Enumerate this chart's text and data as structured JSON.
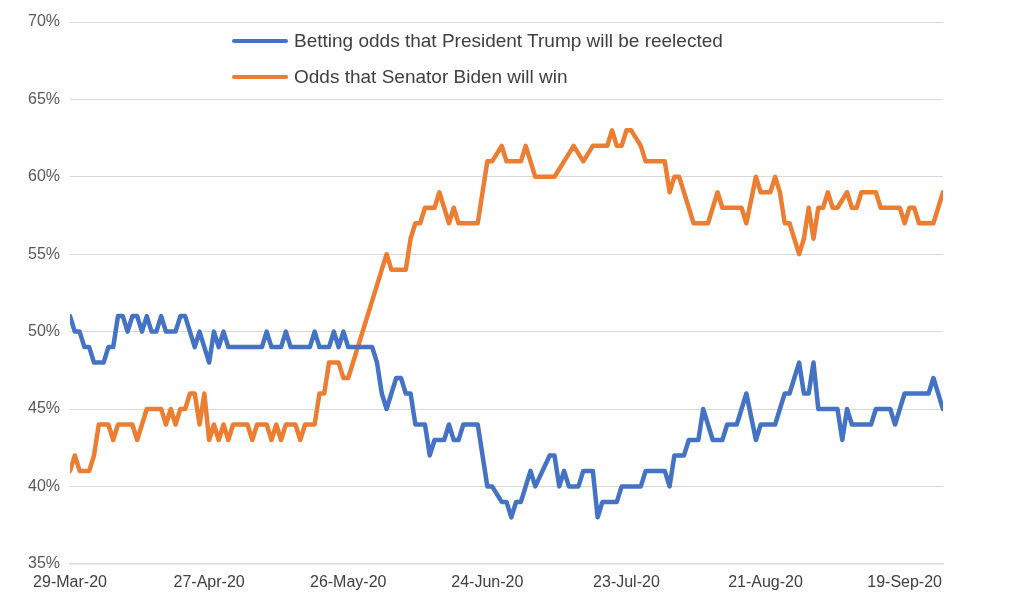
{
  "chart_data": {
    "type": "line",
    "legend": "top",
    "grid": "y",
    "marker": "none",
    "line_style": "solid",
    "xlim": [
      "2020-03-29",
      "2020-09-27"
    ],
    "xticks": [
      {
        "value": "2020-03-29",
        "label": "29-Mar-20"
      },
      {
        "value": "2020-04-27",
        "label": "27-Apr-20"
      },
      {
        "value": "2020-05-26",
        "label": "26-May-20"
      },
      {
        "value": "2020-06-24",
        "label": "24-Jun-20"
      },
      {
        "value": "2020-07-23",
        "label": "23-Jul-20"
      },
      {
        "value": "2020-08-21",
        "label": "21-Aug-20"
      },
      {
        "value": "2020-09-19",
        "label": "19-Sep-20"
      }
    ],
    "ylim": [
      35,
      70
    ],
    "yticks": [
      {
        "value": 35,
        "label": "35%"
      },
      {
        "value": 40,
        "label": "40%"
      },
      {
        "value": 45,
        "label": "45%"
      },
      {
        "value": 50,
        "label": "50%"
      },
      {
        "value": 55,
        "label": "55%"
      },
      {
        "value": 60,
        "label": "60%"
      },
      {
        "value": 65,
        "label": "65%"
      },
      {
        "value": 70,
        "label": "70%"
      }
    ],
    "series": [
      {
        "name": "Betting odds that President Trump will be reelected",
        "color": "#4472c4",
        "x": [
          "2020-03-29",
          "2020-03-30",
          "2020-03-31",
          "2020-04-01",
          "2020-04-02",
          "2020-04-03",
          "2020-04-05",
          "2020-04-06",
          "2020-04-07",
          "2020-04-08",
          "2020-04-09",
          "2020-04-10",
          "2020-04-11",
          "2020-04-12",
          "2020-04-13",
          "2020-04-14",
          "2020-04-15",
          "2020-04-16",
          "2020-04-17",
          "2020-04-18",
          "2020-04-20",
          "2020-04-21",
          "2020-04-22",
          "2020-04-23",
          "2020-04-24",
          "2020-04-25",
          "2020-04-26",
          "2020-04-27",
          "2020-04-28",
          "2020-04-29",
          "2020-04-30",
          "2020-05-01",
          "2020-05-08",
          "2020-05-09",
          "2020-05-10",
          "2020-05-12",
          "2020-05-13",
          "2020-05-14",
          "2020-05-18",
          "2020-05-19",
          "2020-05-20",
          "2020-05-22",
          "2020-05-23",
          "2020-05-24",
          "2020-05-25",
          "2020-05-26",
          "2020-05-31",
          "2020-06-01",
          "2020-06-02",
          "2020-06-03",
          "2020-06-05",
          "2020-06-06",
          "2020-06-07",
          "2020-06-08",
          "2020-06-09",
          "2020-06-11",
          "2020-06-12",
          "2020-06-13",
          "2020-06-15",
          "2020-06-16",
          "2020-06-17",
          "2020-06-18",
          "2020-06-19",
          "2020-06-22",
          "2020-06-23",
          "2020-06-24",
          "2020-06-25",
          "2020-06-27",
          "2020-06-28",
          "2020-06-29",
          "2020-06-30",
          "2020-07-01",
          "2020-07-03",
          "2020-07-04",
          "2020-07-07",
          "2020-07-08",
          "2020-07-09",
          "2020-07-10",
          "2020-07-11",
          "2020-07-13",
          "2020-07-14",
          "2020-07-16",
          "2020-07-17",
          "2020-07-18",
          "2020-07-21",
          "2020-07-22",
          "2020-07-26",
          "2020-07-27",
          "2020-07-31",
          "2020-08-01",
          "2020-08-02",
          "2020-08-04",
          "2020-08-05",
          "2020-08-07",
          "2020-08-08",
          "2020-08-10",
          "2020-08-12",
          "2020-08-13",
          "2020-08-15",
          "2020-08-17",
          "2020-08-19",
          "2020-08-20",
          "2020-08-23",
          "2020-08-25",
          "2020-08-26",
          "2020-08-28",
          "2020-08-29",
          "2020-08-30",
          "2020-08-31",
          "2020-09-01",
          "2020-09-05",
          "2020-09-06",
          "2020-09-07",
          "2020-09-08",
          "2020-09-12",
          "2020-09-13",
          "2020-09-16",
          "2020-09-17",
          "2020-09-19",
          "2020-09-24",
          "2020-09-25",
          "2020-09-27"
        ],
        "values": [
          51,
          50,
          50,
          49,
          49,
          48,
          48,
          49,
          49,
          51,
          51,
          50,
          51,
          51,
          50,
          51,
          50,
          50,
          51,
          50,
          50,
          51,
          51,
          50,
          49,
          50,
          49,
          48,
          50,
          49,
          50,
          49,
          49,
          50,
          49,
          49,
          50,
          49,
          49,
          50,
          49,
          49,
          50,
          49,
          50,
          49,
          49,
          48,
          46,
          45,
          47,
          47,
          46,
          46,
          44,
          44,
          42,
          43,
          43,
          44,
          43,
          43,
          44,
          44,
          42,
          40,
          40,
          39,
          39,
          38,
          39,
          39,
          41,
          40,
          42,
          42,
          40,
          41,
          40,
          40,
          41,
          41,
          38,
          39,
          39,
          40,
          40,
          41,
          41,
          40,
          42,
          42,
          43,
          43,
          45,
          43,
          43,
          44,
          44,
          46,
          43,
          44,
          44,
          46,
          46,
          48,
          46,
          46,
          48,
          45,
          45,
          43,
          45,
          44,
          44,
          45,
          45,
          44,
          46,
          46,
          47,
          45
        ]
      },
      {
        "name": "Odds that Senator Biden will win",
        "color": "#ed7d31",
        "x": [
          "2020-03-29",
          "2020-03-30",
          "2020-03-31",
          "2020-04-02",
          "2020-04-03",
          "2020-04-04",
          "2020-04-06",
          "2020-04-07",
          "2020-04-08",
          "2020-04-11",
          "2020-04-12",
          "2020-04-13",
          "2020-04-14",
          "2020-04-17",
          "2020-04-18",
          "2020-04-19",
          "2020-04-20",
          "2020-04-21",
          "2020-04-22",
          "2020-04-23",
          "2020-04-24",
          "2020-04-25",
          "2020-04-26",
          "2020-04-27",
          "2020-04-28",
          "2020-04-29",
          "2020-04-30",
          "2020-05-01",
          "2020-05-02",
          "2020-05-05",
          "2020-05-06",
          "2020-05-07",
          "2020-05-09",
          "2020-05-10",
          "2020-05-11",
          "2020-05-12",
          "2020-05-13",
          "2020-05-15",
          "2020-05-16",
          "2020-05-17",
          "2020-05-19",
          "2020-05-20",
          "2020-05-21",
          "2020-05-22",
          "2020-05-24",
          "2020-05-25",
          "2020-05-26",
          "2020-05-28",
          "2020-05-29",
          "2020-05-31",
          "2020-06-01",
          "2020-06-03",
          "2020-06-04",
          "2020-06-07",
          "2020-06-08",
          "2020-06-09",
          "2020-06-10",
          "2020-06-11",
          "2020-06-13",
          "2020-06-14",
          "2020-06-16",
          "2020-06-17",
          "2020-06-18",
          "2020-06-22",
          "2020-06-24",
          "2020-06-25",
          "2020-06-27",
          "2020-06-28",
          "2020-07-01",
          "2020-07-02",
          "2020-07-04",
          "2020-07-08",
          "2020-07-10",
          "2020-07-12",
          "2020-07-14",
          "2020-07-16",
          "2020-07-19",
          "2020-07-20",
          "2020-07-21",
          "2020-07-22",
          "2020-07-23",
          "2020-07-24",
          "2020-07-26",
          "2020-07-27",
          "2020-07-31",
          "2020-08-01",
          "2020-08-02",
          "2020-08-03",
          "2020-08-06",
          "2020-08-09",
          "2020-08-11",
          "2020-08-12",
          "2020-08-16",
          "2020-08-17",
          "2020-08-19",
          "2020-08-20",
          "2020-08-22",
          "2020-08-23",
          "2020-08-24",
          "2020-08-25",
          "2020-08-26",
          "2020-08-28",
          "2020-08-29",
          "2020-08-30",
          "2020-08-31",
          "2020-09-01",
          "2020-09-02",
          "2020-09-03",
          "2020-09-04",
          "2020-09-05",
          "2020-09-07",
          "2020-09-08",
          "2020-09-09",
          "2020-09-10",
          "2020-09-13",
          "2020-09-14",
          "2020-09-18",
          "2020-09-19",
          "2020-09-20",
          "2020-09-21",
          "2020-09-22",
          "2020-09-25",
          "2020-09-27"
        ],
        "values": [
          41,
          42,
          41,
          41,
          42,
          44,
          44,
          43,
          44,
          44,
          43,
          44,
          45,
          45,
          44,
          45,
          44,
          45,
          45,
          46,
          46,
          44,
          46,
          43,
          44,
          43,
          44,
          43,
          44,
          44,
          43,
          44,
          44,
          43,
          44,
          43,
          44,
          44,
          43,
          44,
          44,
          46,
          46,
          48,
          48,
          47,
          47,
          49,
          50,
          52,
          53,
          55,
          54,
          54,
          56,
          57,
          57,
          58,
          58,
          59,
          57,
          58,
          57,
          57,
          61,
          61,
          62,
          61,
          61,
          62,
          60,
          60,
          61,
          62,
          61,
          62,
          62,
          63,
          62,
          62,
          63,
          63,
          62,
          61,
          61,
          59,
          60,
          60,
          57,
          57,
          59,
          58,
          58,
          57,
          60,
          59,
          59,
          60,
          59,
          57,
          57,
          55,
          56,
          58,
          56,
          58,
          58,
          59,
          58,
          58,
          59,
          58,
          58,
          59,
          59,
          58,
          58,
          57,
          58,
          58,
          57,
          57,
          59
        ]
      }
    ]
  }
}
